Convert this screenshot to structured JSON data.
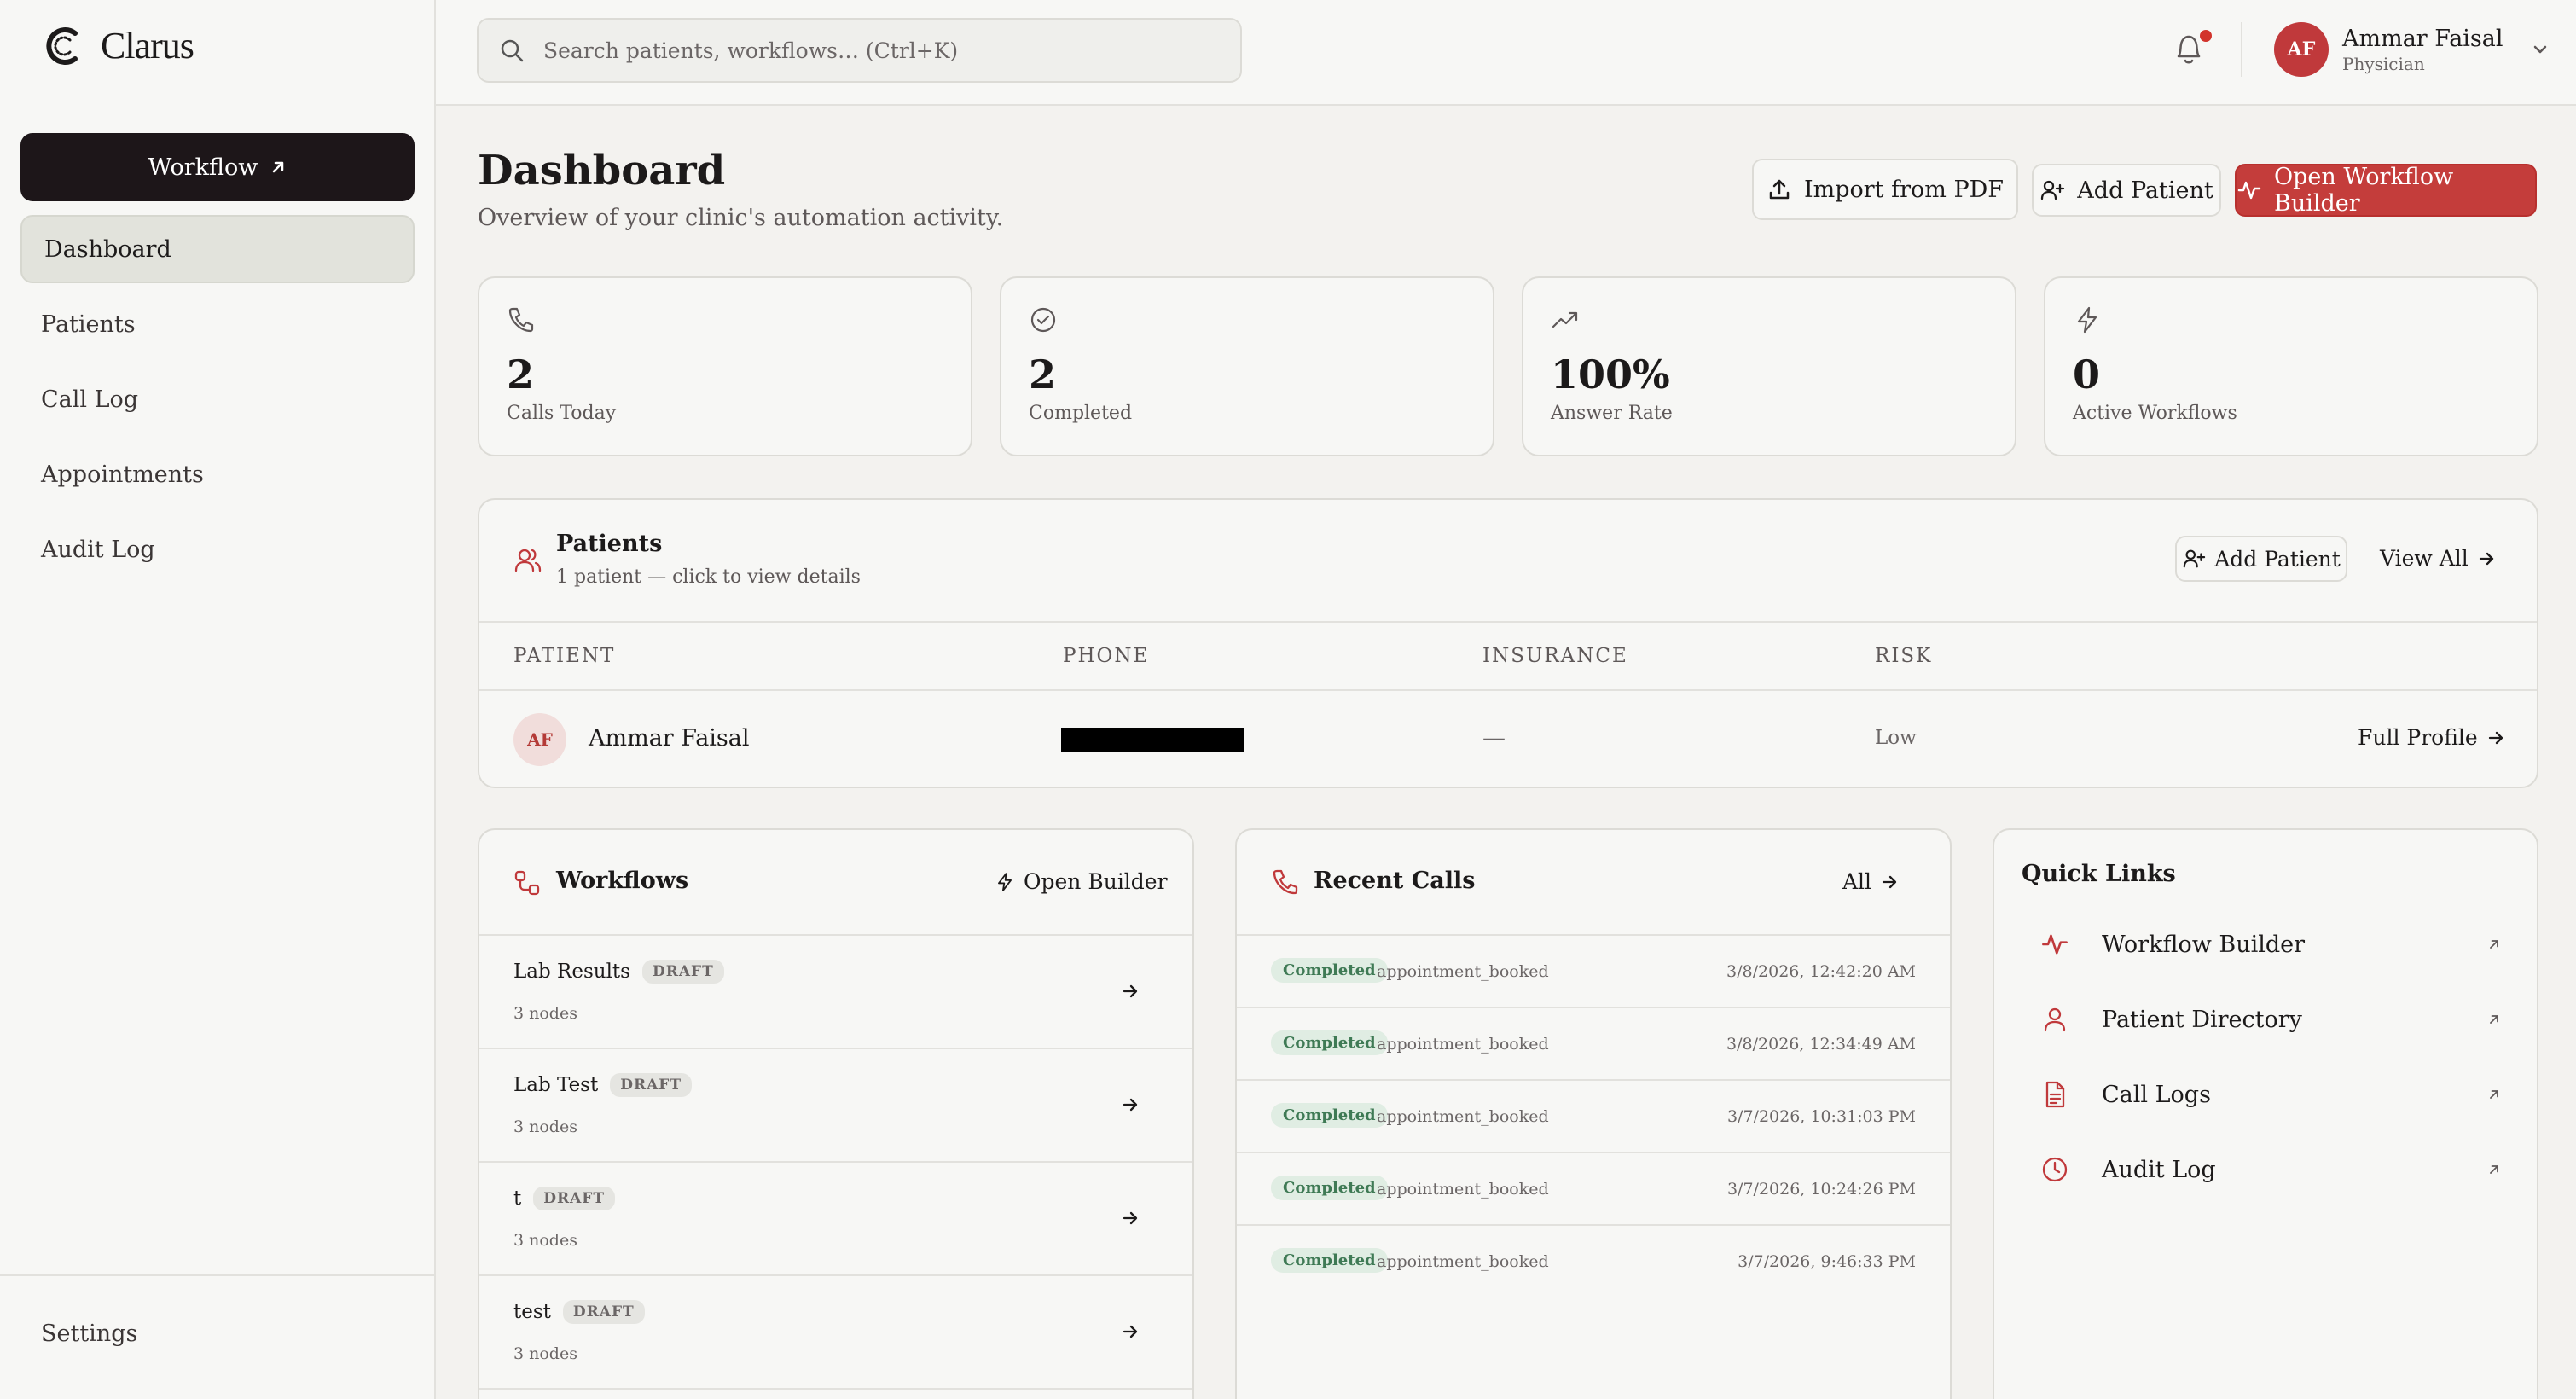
{
  "app": {
    "brand": "Clarus"
  },
  "sidebar": {
    "workflow_button": "Workflow",
    "items": [
      {
        "label": "Dashboard",
        "active": true
      },
      {
        "label": "Patients"
      },
      {
        "label": "Call Log"
      },
      {
        "label": "Appointments"
      },
      {
        "label": "Audit Log"
      }
    ],
    "settings": "Settings"
  },
  "topbar": {
    "search_placeholder": "Search patients, workflows… (Ctrl+K)",
    "user": {
      "initials": "AF",
      "name": "Ammar Faisal",
      "role": "Physician"
    }
  },
  "header": {
    "title": "Dashboard",
    "subtitle": "Overview of your clinic's automation activity.",
    "import_button": "Import from PDF",
    "add_patient_button": "Add Patient",
    "builder_button": "Open Workflow Builder"
  },
  "stats": [
    {
      "icon": "phone-icon",
      "value": "2",
      "label": "Calls Today"
    },
    {
      "icon": "check-circle-icon",
      "value": "2",
      "label": "Completed"
    },
    {
      "icon": "trending-up-icon",
      "value": "100%",
      "label": "Answer Rate"
    },
    {
      "icon": "zap-icon",
      "value": "0",
      "label": "Active Workflows"
    }
  ],
  "patients": {
    "title": "Patients",
    "subtitle": "1 patient — click to view details",
    "add_button": "Add Patient",
    "view_all": "View All",
    "columns": [
      "PATIENT",
      "PHONE",
      "INSURANCE",
      "RISK"
    ],
    "rows": [
      {
        "initials": "AF",
        "name": "Ammar Faisal",
        "phone": "[redacted]",
        "insurance": "—",
        "risk": "Low",
        "action": "Full Profile"
      }
    ]
  },
  "workflows": {
    "title": "Workflows",
    "open_builder": "Open Builder",
    "items": [
      {
        "name": "Lab Results",
        "status": "DRAFT",
        "nodes": "3 nodes"
      },
      {
        "name": "Lab Test",
        "status": "DRAFT",
        "nodes": "3 nodes"
      },
      {
        "name": "t",
        "status": "DRAFT",
        "nodes": "3 nodes"
      },
      {
        "name": "test",
        "status": "DRAFT",
        "nodes": "3 nodes"
      }
    ]
  },
  "recent_calls": {
    "title": "Recent Calls",
    "all_link": "All",
    "items": [
      {
        "status": "Completed",
        "type": "appointment_booked",
        "time": "3/8/2026, 12:42:20 AM"
      },
      {
        "status": "Completed",
        "type": "appointment_booked",
        "time": "3/8/2026, 12:34:49 AM"
      },
      {
        "status": "Completed",
        "type": "appointment_booked",
        "time": "3/7/2026, 10:31:03 PM"
      },
      {
        "status": "Completed",
        "type": "appointment_booked",
        "time": "3/7/2026, 10:24:26 PM"
      },
      {
        "status": "Completed",
        "type": "appointment_booked",
        "time": "3/7/2026, 9:46:33 PM"
      }
    ]
  },
  "quick_links": {
    "title": "Quick Links",
    "items": [
      {
        "label": "Workflow Builder",
        "icon": "activity-icon"
      },
      {
        "label": "Patient Directory",
        "icon": "user-icon"
      },
      {
        "label": "Call Logs",
        "icon": "file-text-icon"
      },
      {
        "label": "Audit Log",
        "icon": "clock-icon"
      }
    ]
  },
  "colors": {
    "accent": "#c43d3b",
    "dark": "#1d1619",
    "success": "#3f7a55"
  }
}
